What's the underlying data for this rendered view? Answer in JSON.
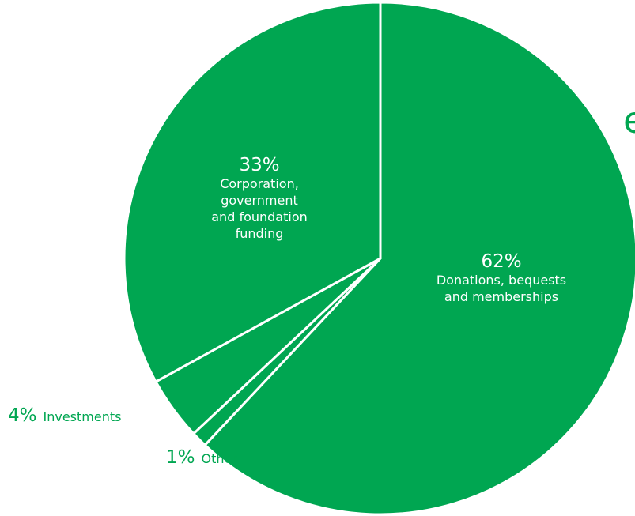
{
  "title_fragment": "e",
  "colors": {
    "slice_fill": "#00a651",
    "separator": "#ffffff",
    "text_outside": "#00a651",
    "text_inside": "#ffffff"
  },
  "chart_data": {
    "type": "pie",
    "categories": [
      "Donations, bequests and memberships",
      "Other",
      "Investments",
      "Corporation, government and foundation funding"
    ],
    "values": [
      62,
      1,
      4,
      33
    ],
    "value_labels": [
      "62%",
      "1%",
      "4%",
      "33%"
    ],
    "label_lines": [
      [
        "Donations, bequests",
        "and memberships"
      ],
      [
        "Other"
      ],
      [
        "Investments"
      ],
      [
        "Corporation,",
        "government",
        "and foundation",
        "funding"
      ]
    ],
    "start": "12 o'clock",
    "direction": "clockwise"
  }
}
